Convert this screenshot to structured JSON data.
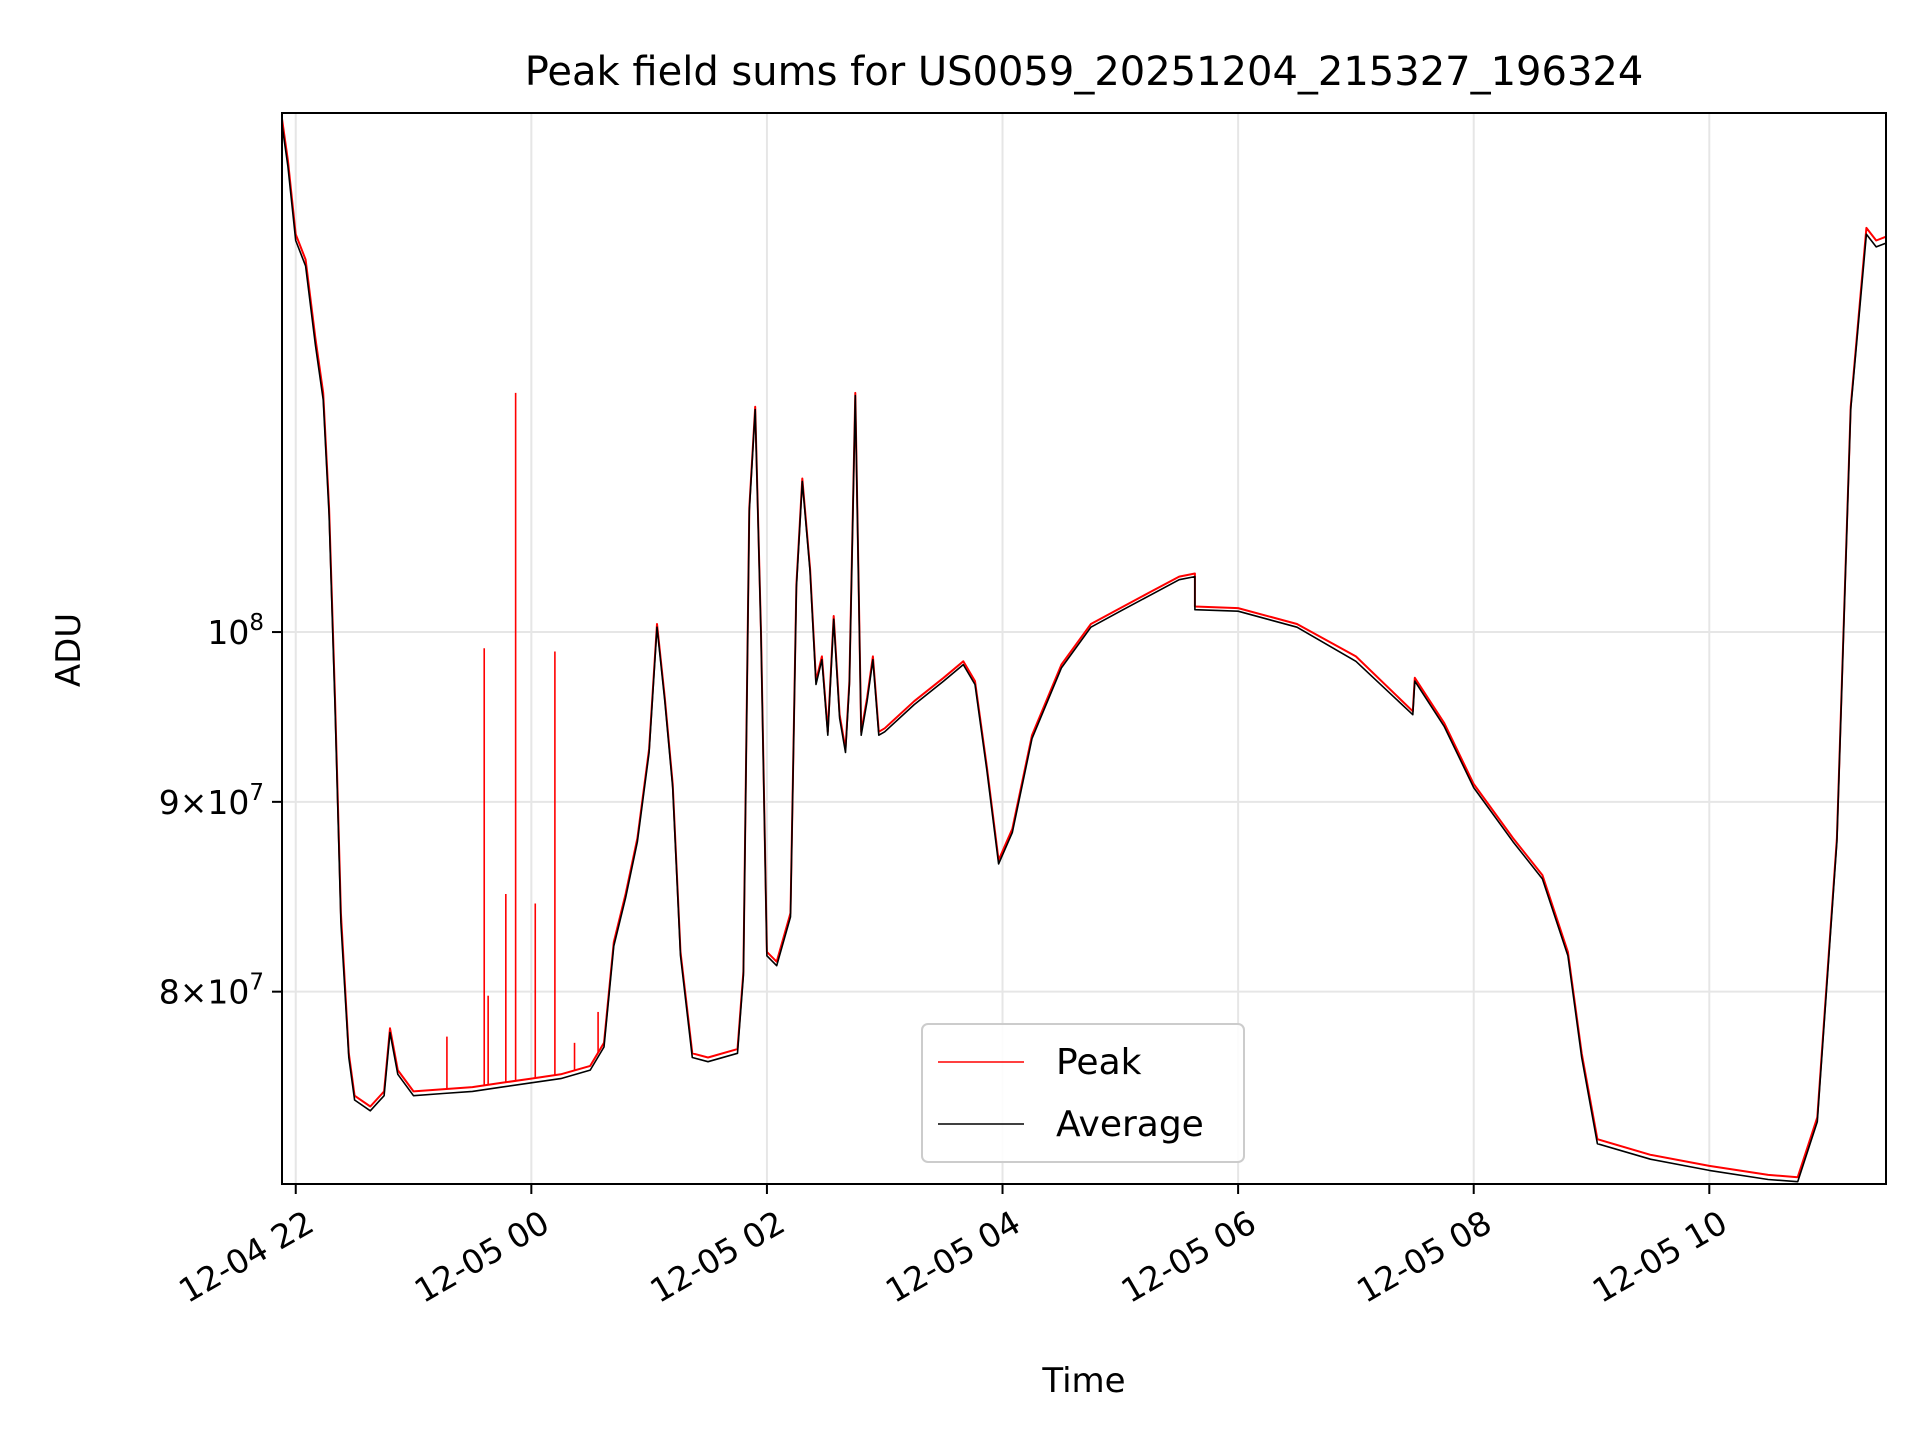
{
  "chart_data": {
    "type": "line",
    "title": "Peak field sums for US0059_20251204_215327_196324",
    "xlabel": "Time",
    "ylabel": "ADU",
    "y_scale": "log",
    "ylim": [
      71000000,
      138000000
    ],
    "xlim": [
      "2025-12-04 21:53",
      "2025-12-05 11:30"
    ],
    "x_ticks": [
      {
        "value": "2025-12-04 22:00",
        "label": "12-04 22"
      },
      {
        "value": "2025-12-05 00:00",
        "label": "12-05 00"
      },
      {
        "value": "2025-12-05 02:00",
        "label": "12-05 02"
      },
      {
        "value": "2025-12-05 04:00",
        "label": "12-05 04"
      },
      {
        "value": "2025-12-05 06:00",
        "label": "12-05 06"
      },
      {
        "value": "2025-12-05 08:00",
        "label": "12-05 08"
      },
      {
        "value": "2025-12-05 10:00",
        "label": "12-05 10"
      }
    ],
    "y_ticks": [
      {
        "value": 80000000,
        "base": "8",
        "exp": "7"
      },
      {
        "value": 90000000,
        "base": "9",
        "exp": "7"
      },
      {
        "value": 100000000,
        "base": "",
        "exp": "8"
      }
    ],
    "grid": true,
    "legend_position": "lower-center",
    "series": [
      {
        "name": "Peak",
        "color": "#ff0000",
        "points": [
          [
            "2025-12-04 21:53",
            137500000
          ],
          [
            "2025-12-04 21:56",
            134000000
          ],
          [
            "2025-12-04 22:00",
            128000000
          ],
          [
            "2025-12-04 22:05",
            126000000
          ],
          [
            "2025-12-04 22:10",
            120000000
          ],
          [
            "2025-12-04 22:14",
            116000000
          ],
          [
            "2025-12-04 22:17",
            108000000
          ],
          [
            "2025-12-04 22:20",
            96000000
          ],
          [
            "2025-12-04 22:23",
            84000000
          ],
          [
            "2025-12-04 22:27",
            77000000
          ],
          [
            "2025-12-04 22:30",
            75000000
          ],
          [
            "2025-12-04 22:38",
            74500000
          ],
          [
            "2025-12-04 22:45",
            75200000
          ],
          [
            "2025-12-04 22:48",
            78200000
          ],
          [
            "2025-12-04 22:52",
            76200000
          ],
          [
            "2025-12-04 23:00",
            75200000
          ],
          [
            "2025-12-04 23:15",
            75300000
          ],
          [
            "2025-12-04 23:30",
            75400000
          ],
          [
            "2025-12-04 23:45",
            75600000
          ],
          [
            "2025-12-05 00:00",
            75800000
          ],
          [
            "2025-12-05 00:15",
            76000000
          ],
          [
            "2025-12-05 00:30",
            76400000
          ],
          [
            "2025-12-05 00:37",
            77500000
          ],
          [
            "2025-12-05 00:42",
            82500000
          ],
          [
            "2025-12-05 00:48",
            85000000
          ],
          [
            "2025-12-05 00:54",
            88000000
          ],
          [
            "2025-12-05 01:00",
            93000000
          ],
          [
            "2025-12-05 01:04",
            100500000
          ],
          [
            "2025-12-05 01:08",
            96000000
          ],
          [
            "2025-12-05 01:12",
            91000000
          ],
          [
            "2025-12-05 01:16",
            82000000
          ],
          [
            "2025-12-05 01:22",
            77000000
          ],
          [
            "2025-12-05 01:30",
            76800000
          ],
          [
            "2025-12-05 01:45",
            77200000
          ],
          [
            "2025-12-05 01:48",
            81000000
          ],
          [
            "2025-12-05 01:51",
            108000000
          ],
          [
            "2025-12-05 01:54",
            115000000
          ],
          [
            "2025-12-05 01:57",
            100000000
          ],
          [
            "2025-12-05 02:00",
            82000000
          ],
          [
            "2025-12-05 02:05",
            81500000
          ],
          [
            "2025-12-05 02:12",
            84000000
          ],
          [
            "2025-12-05 02:15",
            103000000
          ],
          [
            "2025-12-05 02:18",
            110000000
          ],
          [
            "2025-12-05 02:22",
            104000000
          ],
          [
            "2025-12-05 02:25",
            97000000
          ],
          [
            "2025-12-05 02:28",
            98500000
          ],
          [
            "2025-12-05 02:31",
            94000000
          ],
          [
            "2025-12-05 02:34",
            101000000
          ],
          [
            "2025-12-05 02:37",
            95000000
          ],
          [
            "2025-12-05 02:40",
            93000000
          ],
          [
            "2025-12-05 02:42",
            97000000
          ],
          [
            "2025-12-05 02:45",
            116000000
          ],
          [
            "2025-12-05 02:48",
            94000000
          ],
          [
            "2025-12-05 02:51",
            96000000
          ],
          [
            "2025-12-05 02:54",
            98500000
          ],
          [
            "2025-12-05 02:57",
            94000000
          ],
          [
            "2025-12-05 03:00",
            94200000
          ],
          [
            "2025-12-05 03:15",
            95800000
          ],
          [
            "2025-12-05 03:30",
            97200000
          ],
          [
            "2025-12-05 03:40",
            98200000
          ],
          [
            "2025-12-05 03:46",
            97000000
          ],
          [
            "2025-12-05 03:52",
            92000000
          ],
          [
            "2025-12-05 03:58",
            86800000
          ],
          [
            "2025-12-05 04:05",
            88500000
          ],
          [
            "2025-12-05 04:15",
            93800000
          ],
          [
            "2025-12-05 04:30",
            98000000
          ],
          [
            "2025-12-05 04:45",
            100500000
          ],
          [
            "2025-12-05 05:00",
            101500000
          ],
          [
            "2025-12-05 05:15",
            102500000
          ],
          [
            "2025-12-05 05:30",
            103500000
          ],
          [
            "2025-12-05 05:38",
            103700000
          ],
          [
            "2025-12-05 05:38",
            101600000
          ],
          [
            "2025-12-05 06:00",
            101500000
          ],
          [
            "2025-12-05 06:30",
            100500000
          ],
          [
            "2025-12-05 07:00",
            98500000
          ],
          [
            "2025-12-05 07:29",
            95200000
          ],
          [
            "2025-12-05 07:30",
            97200000
          ],
          [
            "2025-12-05 07:45",
            94500000
          ],
          [
            "2025-12-05 08:00",
            91000000
          ],
          [
            "2025-12-05 08:20",
            88000000
          ],
          [
            "2025-12-05 08:35",
            86000000
          ],
          [
            "2025-12-05 08:48",
            82000000
          ],
          [
            "2025-12-05 08:55",
            77000000
          ],
          [
            "2025-12-05 09:03",
            73000000
          ],
          [
            "2025-12-05 09:30",
            72300000
          ],
          [
            "2025-12-05 10:00",
            71800000
          ],
          [
            "2025-12-05 10:30",
            71400000
          ],
          [
            "2025-12-05 10:45",
            71300000
          ],
          [
            "2025-12-05 10:55",
            74000000
          ],
          [
            "2025-12-05 11:05",
            88000000
          ],
          [
            "2025-12-05 11:12",
            115000000
          ],
          [
            "2025-12-05 11:20",
            128500000
          ],
          [
            "2025-12-05 11:25",
            127500000
          ],
          [
            "2025-12-05 11:30",
            127800000
          ]
        ],
        "spikes": [
          [
            "2025-12-04 23:17",
            77800000
          ],
          [
            "2025-12-04 23:36",
            99000000
          ],
          [
            "2025-12-04 23:38",
            79800000
          ],
          [
            "2025-12-04 23:47",
            85000000
          ],
          [
            "2025-12-04 23:52",
            116000000
          ],
          [
            "2025-12-05 00:02",
            84500000
          ],
          [
            "2025-12-05 00:12",
            98800000
          ],
          [
            "2025-12-05 00:22",
            77500000
          ],
          [
            "2025-12-05 00:34",
            79000000
          ]
        ]
      },
      {
        "name": "Average",
        "color": "#000000",
        "points": [
          [
            "2025-12-04 21:53",
            137000000
          ],
          [
            "2025-12-04 21:56",
            133500000
          ],
          [
            "2025-12-04 22:00",
            127500000
          ],
          [
            "2025-12-04 22:05",
            125500000
          ],
          [
            "2025-12-04 22:10",
            119500000
          ],
          [
            "2025-12-04 22:14",
            115500000
          ],
          [
            "2025-12-04 22:17",
            107500000
          ],
          [
            "2025-12-04 22:20",
            95500000
          ],
          [
            "2025-12-04 22:23",
            83500000
          ],
          [
            "2025-12-04 22:27",
            76800000
          ],
          [
            "2025-12-04 22:30",
            74800000
          ],
          [
            "2025-12-04 22:38",
            74300000
          ],
          [
            "2025-12-04 22:45",
            75000000
          ],
          [
            "2025-12-04 22:48",
            78000000
          ],
          [
            "2025-12-04 22:52",
            76000000
          ],
          [
            "2025-12-04 23:00",
            75000000
          ],
          [
            "2025-12-04 23:15",
            75100000
          ],
          [
            "2025-12-04 23:30",
            75200000
          ],
          [
            "2025-12-04 23:45",
            75400000
          ],
          [
            "2025-12-05 00:00",
            75600000
          ],
          [
            "2025-12-05 00:15",
            75800000
          ],
          [
            "2025-12-05 00:30",
            76200000
          ],
          [
            "2025-12-05 00:37",
            77300000
          ],
          [
            "2025-12-05 00:42",
            82300000
          ],
          [
            "2025-12-05 00:48",
            84800000
          ],
          [
            "2025-12-05 00:54",
            87800000
          ],
          [
            "2025-12-05 01:00",
            92800000
          ],
          [
            "2025-12-05 01:04",
            100300000
          ],
          [
            "2025-12-05 01:08",
            95800000
          ],
          [
            "2025-12-05 01:12",
            90800000
          ],
          [
            "2025-12-05 01:16",
            81800000
          ],
          [
            "2025-12-05 01:22",
            76800000
          ],
          [
            "2025-12-05 01:30",
            76600000
          ],
          [
            "2025-12-05 01:45",
            77000000
          ],
          [
            "2025-12-05 01:48",
            80800000
          ],
          [
            "2025-12-05 01:51",
            107800000
          ],
          [
            "2025-12-05 01:54",
            114800000
          ],
          [
            "2025-12-05 01:57",
            99800000
          ],
          [
            "2025-12-05 02:00",
            81800000
          ],
          [
            "2025-12-05 02:05",
            81300000
          ],
          [
            "2025-12-05 02:12",
            83800000
          ],
          [
            "2025-12-05 02:15",
            102800000
          ],
          [
            "2025-12-05 02:18",
            109800000
          ],
          [
            "2025-12-05 02:22",
            103800000
          ],
          [
            "2025-12-05 02:25",
            96800000
          ],
          [
            "2025-12-05 02:28",
            98300000
          ],
          [
            "2025-12-05 02:31",
            93800000
          ],
          [
            "2025-12-05 02:34",
            100800000
          ],
          [
            "2025-12-05 02:37",
            94800000
          ],
          [
            "2025-12-05 02:40",
            92800000
          ],
          [
            "2025-12-05 02:42",
            96800000
          ],
          [
            "2025-12-05 02:45",
            115800000
          ],
          [
            "2025-12-05 02:48",
            93800000
          ],
          [
            "2025-12-05 02:51",
            95800000
          ],
          [
            "2025-12-05 02:54",
            98300000
          ],
          [
            "2025-12-05 02:57",
            93800000
          ],
          [
            "2025-12-05 03:00",
            94000000
          ],
          [
            "2025-12-05 03:15",
            95600000
          ],
          [
            "2025-12-05 03:30",
            97000000
          ],
          [
            "2025-12-05 03:40",
            98000000
          ],
          [
            "2025-12-05 03:46",
            96800000
          ],
          [
            "2025-12-05 03:52",
            91800000
          ],
          [
            "2025-12-05 03:58",
            86600000
          ],
          [
            "2025-12-05 04:05",
            88300000
          ],
          [
            "2025-12-05 04:15",
            93600000
          ],
          [
            "2025-12-05 04:30",
            97800000
          ],
          [
            "2025-12-05 04:45",
            100300000
          ],
          [
            "2025-12-05 05:00",
            101300000
          ],
          [
            "2025-12-05 05:15",
            102300000
          ],
          [
            "2025-12-05 05:30",
            103300000
          ],
          [
            "2025-12-05 05:38",
            103500000
          ],
          [
            "2025-12-05 05:38",
            101400000
          ],
          [
            "2025-12-05 06:00",
            101300000
          ],
          [
            "2025-12-05 06:30",
            100300000
          ],
          [
            "2025-12-05 07:00",
            98200000
          ],
          [
            "2025-12-05 07:29",
            95000000
          ],
          [
            "2025-12-05 07:30",
            97000000
          ],
          [
            "2025-12-05 07:45",
            94300000
          ],
          [
            "2025-12-05 08:00",
            90800000
          ],
          [
            "2025-12-05 08:20",
            87800000
          ],
          [
            "2025-12-05 08:35",
            85800000
          ],
          [
            "2025-12-05 08:48",
            81800000
          ],
          [
            "2025-12-05 08:55",
            76800000
          ],
          [
            "2025-12-05 09:03",
            72800000
          ],
          [
            "2025-12-05 09:30",
            72100000
          ],
          [
            "2025-12-05 10:00",
            71600000
          ],
          [
            "2025-12-05 10:30",
            71200000
          ],
          [
            "2025-12-05 10:45",
            71100000
          ],
          [
            "2025-12-05 10:55",
            73800000
          ],
          [
            "2025-12-05 11:05",
            87800000
          ],
          [
            "2025-12-05 11:12",
            114800000
          ],
          [
            "2025-12-05 11:20",
            128000000
          ],
          [
            "2025-12-05 11:25",
            127000000
          ],
          [
            "2025-12-05 11:30",
            127300000
          ]
        ]
      }
    ]
  }
}
